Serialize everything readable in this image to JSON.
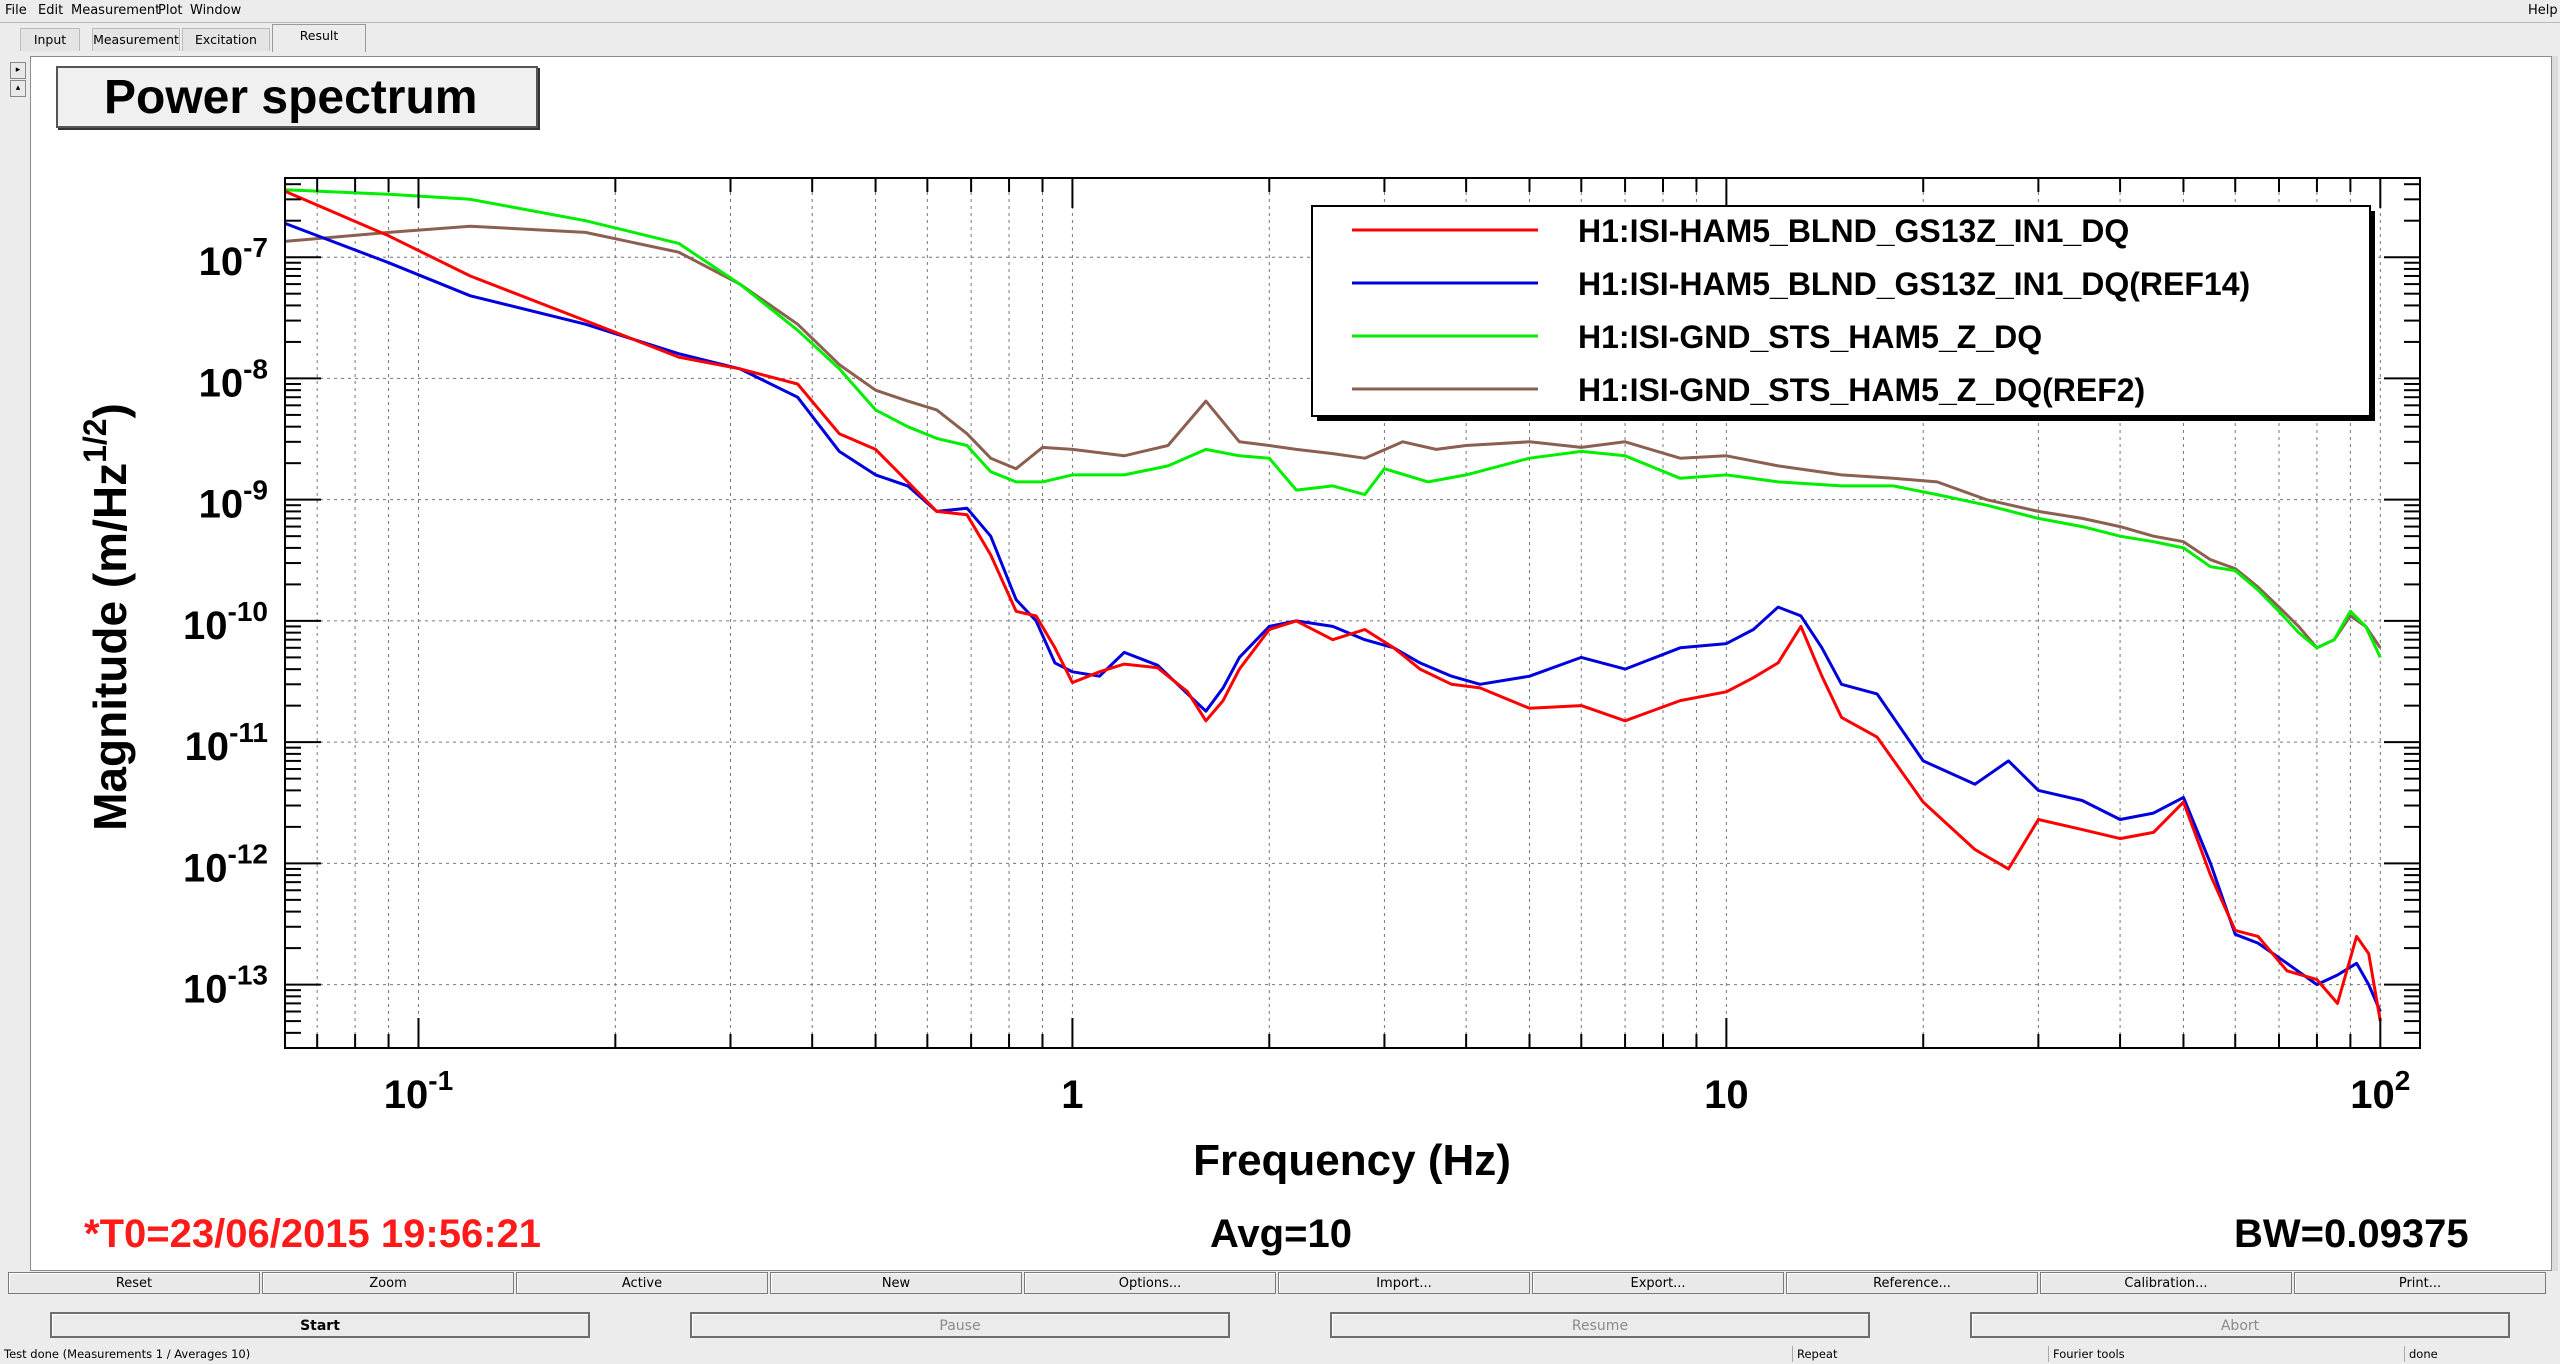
{
  "menu": {
    "file": "File",
    "edit": "Edit",
    "measurement": "Measurement",
    "plot": "Plot",
    "window": "Window",
    "help": "Help"
  },
  "tabs": [
    "Input",
    "Measurement",
    "Excitation",
    "Result"
  ],
  "active_tab": "Result",
  "plot_title": "Power spectrum",
  "footer": {
    "t0": "*T0=23/06/2015 19:56:21",
    "avg": "Avg=10",
    "bw": "BW=0.09375"
  },
  "toolbar": [
    "Reset",
    "Zoom",
    "Active",
    "New",
    "Options...",
    "Import...",
    "Export...",
    "Reference...",
    "Calibration...",
    "Print..."
  ],
  "controls": {
    "start": "Start",
    "pause": "Pause",
    "resume": "Resume",
    "abort": "Abort"
  },
  "status": {
    "message": "Test done (Measurements 1 / Averages 10)",
    "repeat": "Repeat",
    "tools": "Fourier tools",
    "state": "done"
  },
  "colors": {
    "red": "#ff0000",
    "blue": "#0000dd",
    "green": "#00ee00",
    "brown": "#8b6050"
  },
  "chart_data": {
    "type": "line",
    "title": "Power spectrum",
    "xlabel": "Frequency (Hz)",
    "ylabel": "Magnitude (m/Hz^1/2)",
    "xscale": "log",
    "yscale": "log",
    "xlim": [
      0.0625,
      115
    ],
    "ylim": [
      3e-14,
      4.5e-07
    ],
    "grid": true,
    "legend_position": "top-right",
    "x_ticks": [
      {
        "value": 0.1,
        "base": "10",
        "exp": "-1"
      },
      {
        "value": 1,
        "base": "1",
        "exp": ""
      },
      {
        "value": 10,
        "base": "10",
        "exp": ""
      },
      {
        "value": 100,
        "base": "10",
        "exp": "2"
      }
    ],
    "y_ticks": [
      {
        "value": 1e-07,
        "base": "10",
        "exp": "-7"
      },
      {
        "value": 1e-08,
        "base": "10",
        "exp": "-8"
      },
      {
        "value": 1e-09,
        "base": "10",
        "exp": "-9"
      },
      {
        "value": 1e-10,
        "base": "10",
        "exp": "-10"
      },
      {
        "value": 1e-11,
        "base": "10",
        "exp": "-11"
      },
      {
        "value": 1e-12,
        "base": "10",
        "exp": "-12"
      },
      {
        "value": 1e-13,
        "base": "10",
        "exp": "-13"
      }
    ],
    "series": [
      {
        "name": "H1:ISI-HAM5_BLND_GS13Z_IN1_DQ",
        "color": "#ff0000",
        "points": [
          [
            0.0625,
            3.5e-07
          ],
          [
            0.09,
            1.5e-07
          ],
          [
            0.12,
            7e-08
          ],
          [
            0.18,
            3e-08
          ],
          [
            0.25,
            1.5e-08
          ],
          [
            0.31,
            1.2e-08
          ],
          [
            0.38,
            9e-09
          ],
          [
            0.44,
            3.5e-09
          ],
          [
            0.5,
            2.6e-09
          ],
          [
            0.56,
            1.4e-09
          ],
          [
            0.62,
            8e-10
          ],
          [
            0.69,
            7.5e-10
          ],
          [
            0.75,
            3.5e-10
          ],
          [
            0.82,
            1.2e-10
          ],
          [
            0.88,
            1.1e-10
          ],
          [
            0.94,
            6e-11
          ],
          [
            1.0,
            3.1e-11
          ],
          [
            1.1,
            3.8e-11
          ],
          [
            1.2,
            4.4e-11
          ],
          [
            1.35,
            4.1e-11
          ],
          [
            1.5,
            2.6e-11
          ],
          [
            1.6,
            1.5e-11
          ],
          [
            1.7,
            2.2e-11
          ],
          [
            1.8,
            4e-11
          ],
          [
            2.0,
            8.5e-11
          ],
          [
            2.2,
            1e-10
          ],
          [
            2.5,
            7e-11
          ],
          [
            2.8,
            8.5e-11
          ],
          [
            3.1,
            6e-11
          ],
          [
            3.4,
            4e-11
          ],
          [
            3.8,
            3e-11
          ],
          [
            4.2,
            2.8e-11
          ],
          [
            5.0,
            1.9e-11
          ],
          [
            6.0,
            2e-11
          ],
          [
            7.0,
            1.5e-11
          ],
          [
            8.5,
            2.2e-11
          ],
          [
            10,
            2.6e-11
          ],
          [
            11,
            3.4e-11
          ],
          [
            12,
            4.5e-11
          ],
          [
            13,
            9e-11
          ],
          [
            14,
            3.5e-11
          ],
          [
            15,
            1.6e-11
          ],
          [
            17,
            1.1e-11
          ],
          [
            20,
            3.2e-12
          ],
          [
            24,
            1.3e-12
          ],
          [
            27,
            9e-13
          ],
          [
            30,
            2.3e-12
          ],
          [
            35,
            1.9e-12
          ],
          [
            40,
            1.6e-12
          ],
          [
            45,
            1.8e-12
          ],
          [
            50,
            3.2e-12
          ],
          [
            55,
            8e-13
          ],
          [
            60,
            2.8e-13
          ],
          [
            65,
            2.5e-13
          ],
          [
            72,
            1.3e-13
          ],
          [
            80,
            1.1e-13
          ],
          [
            86,
            7e-14
          ],
          [
            92,
            2.5e-13
          ],
          [
            96,
            1.8e-13
          ],
          [
            100,
            5e-14
          ]
        ]
      },
      {
        "name": "H1:ISI-HAM5_BLND_GS13Z_IN1_DQ(REF14)",
        "color": "#0000dd",
        "points": [
          [
            0.0625,
            1.9e-07
          ],
          [
            0.09,
            9e-08
          ],
          [
            0.12,
            4.8e-08
          ],
          [
            0.18,
            2.8e-08
          ],
          [
            0.25,
            1.6e-08
          ],
          [
            0.31,
            1.2e-08
          ],
          [
            0.38,
            7e-09
          ],
          [
            0.44,
            2.5e-09
          ],
          [
            0.5,
            1.6e-09
          ],
          [
            0.56,
            1.3e-09
          ],
          [
            0.62,
            8e-10
          ],
          [
            0.69,
            8.5e-10
          ],
          [
            0.75,
            5e-10
          ],
          [
            0.82,
            1.5e-10
          ],
          [
            0.88,
            1e-10
          ],
          [
            0.94,
            4.5e-11
          ],
          [
            1.0,
            3.8e-11
          ],
          [
            1.1,
            3.5e-11
          ],
          [
            1.2,
            5.5e-11
          ],
          [
            1.35,
            4.3e-11
          ],
          [
            1.5,
            2.5e-11
          ],
          [
            1.6,
            1.8e-11
          ],
          [
            1.7,
            2.8e-11
          ],
          [
            1.8,
            5e-11
          ],
          [
            2.0,
            9e-11
          ],
          [
            2.2,
            1e-10
          ],
          [
            2.5,
            9e-11
          ],
          [
            2.8,
            7e-11
          ],
          [
            3.1,
            6e-11
          ],
          [
            3.4,
            4.5e-11
          ],
          [
            3.8,
            3.5e-11
          ],
          [
            4.2,
            3e-11
          ],
          [
            5.0,
            3.5e-11
          ],
          [
            6.0,
            5e-11
          ],
          [
            7.0,
            4e-11
          ],
          [
            8.5,
            6e-11
          ],
          [
            10,
            6.5e-11
          ],
          [
            11,
            8.5e-11
          ],
          [
            12,
            1.3e-10
          ],
          [
            13,
            1.1e-10
          ],
          [
            14,
            6e-11
          ],
          [
            15,
            3e-11
          ],
          [
            17,
            2.5e-11
          ],
          [
            20,
            7e-12
          ],
          [
            24,
            4.5e-12
          ],
          [
            27,
            7e-12
          ],
          [
            30,
            4e-12
          ],
          [
            35,
            3.3e-12
          ],
          [
            40,
            2.3e-12
          ],
          [
            45,
            2.6e-12
          ],
          [
            50,
            3.5e-12
          ],
          [
            55,
            1e-12
          ],
          [
            60,
            2.6e-13
          ],
          [
            65,
            2.2e-13
          ],
          [
            72,
            1.5e-13
          ],
          [
            80,
            1e-13
          ],
          [
            86,
            1.2e-13
          ],
          [
            92,
            1.5e-13
          ],
          [
            96,
            1e-13
          ],
          [
            100,
            6e-14
          ]
        ]
      },
      {
        "name": "H1:ISI-GND_STS_HAM5_Z_DQ",
        "color": "#00ee00",
        "points": [
          [
            0.0625,
            3.6e-07
          ],
          [
            0.09,
            3.3e-07
          ],
          [
            0.12,
            3e-07
          ],
          [
            0.18,
            2e-07
          ],
          [
            0.25,
            1.3e-07
          ],
          [
            0.31,
            6e-08
          ],
          [
            0.38,
            2.5e-08
          ],
          [
            0.44,
            1.2e-08
          ],
          [
            0.5,
            5.5e-09
          ],
          [
            0.56,
            4e-09
          ],
          [
            0.62,
            3.2e-09
          ],
          [
            0.69,
            2.8e-09
          ],
          [
            0.75,
            1.7e-09
          ],
          [
            0.82,
            1.4e-09
          ],
          [
            0.9,
            1.4e-09
          ],
          [
            1.0,
            1.6e-09
          ],
          [
            1.2,
            1.6e-09
          ],
          [
            1.4,
            1.9e-09
          ],
          [
            1.6,
            2.6e-09
          ],
          [
            1.8,
            2.3e-09
          ],
          [
            2.0,
            2.2e-09
          ],
          [
            2.2,
            1.2e-09
          ],
          [
            2.5,
            1.3e-09
          ],
          [
            2.8,
            1.1e-09
          ],
          [
            3.0,
            1.8e-09
          ],
          [
            3.5,
            1.4e-09
          ],
          [
            4.0,
            1.6e-09
          ],
          [
            5.0,
            2.2e-09
          ],
          [
            6.0,
            2.5e-09
          ],
          [
            7.0,
            2.3e-09
          ],
          [
            8.5,
            1.5e-09
          ],
          [
            10,
            1.6e-09
          ],
          [
            12,
            1.4e-09
          ],
          [
            15,
            1.3e-09
          ],
          [
            18,
            1.3e-09
          ],
          [
            21,
            1.1e-09
          ],
          [
            25,
            9e-10
          ],
          [
            30,
            7e-10
          ],
          [
            35,
            6e-10
          ],
          [
            40,
            5e-10
          ],
          [
            45,
            4.5e-10
          ],
          [
            50,
            4e-10
          ],
          [
            55,
            2.8e-10
          ],
          [
            60,
            2.6e-10
          ],
          [
            65,
            1.8e-10
          ],
          [
            70,
            1.2e-10
          ],
          [
            75,
            8e-11
          ],
          [
            80,
            6e-11
          ],
          [
            85,
            7e-11
          ],
          [
            90,
            1.2e-10
          ],
          [
            95,
            9e-11
          ],
          [
            100,
            5e-11
          ]
        ]
      },
      {
        "name": "H1:ISI-GND_STS_HAM5_Z_DQ(REF2)",
        "color": "#8b6050",
        "points": [
          [
            0.0625,
            1.35e-07
          ],
          [
            0.09,
            1.6e-07
          ],
          [
            0.12,
            1.8e-07
          ],
          [
            0.18,
            1.6e-07
          ],
          [
            0.25,
            1.1e-07
          ],
          [
            0.31,
            6e-08
          ],
          [
            0.38,
            2.8e-08
          ],
          [
            0.44,
            1.3e-08
          ],
          [
            0.5,
            8e-09
          ],
          [
            0.56,
            6.5e-09
          ],
          [
            0.62,
            5.5e-09
          ],
          [
            0.69,
            3.5e-09
          ],
          [
            0.75,
            2.2e-09
          ],
          [
            0.82,
            1.8e-09
          ],
          [
            0.9,
            2.7e-09
          ],
          [
            1.0,
            2.6e-09
          ],
          [
            1.2,
            2.3e-09
          ],
          [
            1.4,
            2.8e-09
          ],
          [
            1.6,
            6.5e-09
          ],
          [
            1.8,
            3e-09
          ],
          [
            2.0,
            2.8e-09
          ],
          [
            2.2,
            2.6e-09
          ],
          [
            2.5,
            2.4e-09
          ],
          [
            2.8,
            2.2e-09
          ],
          [
            3.2,
            3e-09
          ],
          [
            3.6,
            2.6e-09
          ],
          [
            4.0,
            2.8e-09
          ],
          [
            5.0,
            3e-09
          ],
          [
            6.0,
            2.7e-09
          ],
          [
            7.0,
            3e-09
          ],
          [
            8.5,
            2.2e-09
          ],
          [
            10,
            2.3e-09
          ],
          [
            12,
            1.9e-09
          ],
          [
            15,
            1.6e-09
          ],
          [
            18,
            1.5e-09
          ],
          [
            21,
            1.4e-09
          ],
          [
            25,
            1e-09
          ],
          [
            30,
            8e-10
          ],
          [
            35,
            7e-10
          ],
          [
            40,
            6e-10
          ],
          [
            45,
            5e-10
          ],
          [
            50,
            4.5e-10
          ],
          [
            55,
            3.2e-10
          ],
          [
            60,
            2.7e-10
          ],
          [
            65,
            1.9e-10
          ],
          [
            70,
            1.3e-10
          ],
          [
            75,
            9e-11
          ],
          [
            80,
            6e-11
          ],
          [
            85,
            7e-11
          ],
          [
            90,
            1.1e-10
          ],
          [
            95,
            9e-11
          ],
          [
            100,
            6e-11
          ]
        ]
      }
    ]
  }
}
